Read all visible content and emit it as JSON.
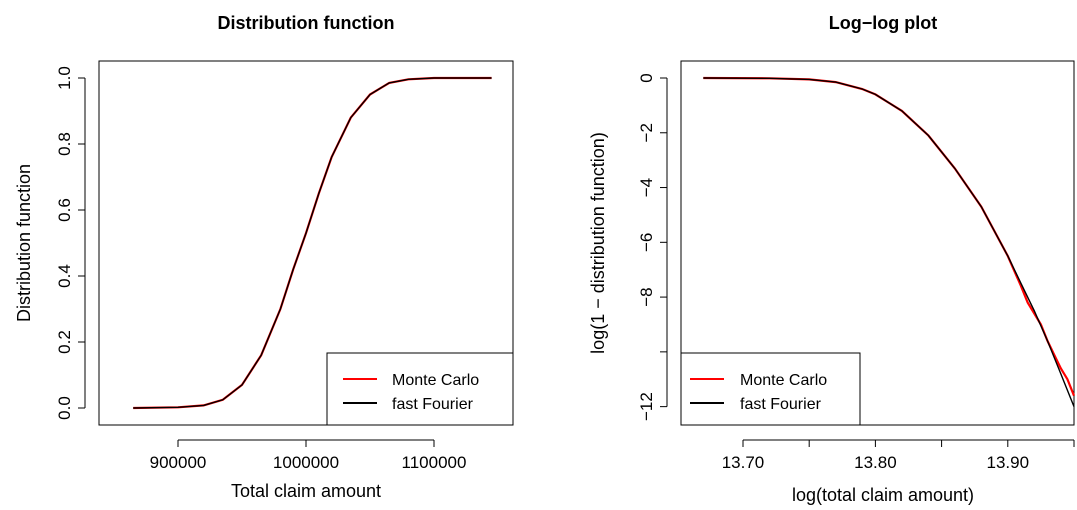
{
  "chart_data": [
    {
      "type": "line",
      "title": "Distribution function",
      "xlabel": "Total claim amount",
      "ylabel": "Distribution function",
      "xlim": [
        850000,
        1150000
      ],
      "ylim": [
        0,
        1
      ],
      "xticks": [
        900000,
        1000000,
        1100000
      ],
      "xtick_labels": [
        "900000",
        "1000000",
        "1100000"
      ],
      "yticks": [
        0.0,
        0.2,
        0.4,
        0.6,
        0.8,
        1.0
      ],
      "ytick_labels": [
        "0.0",
        "0.2",
        "0.4",
        "0.6",
        "0.8",
        "1.0"
      ],
      "legend_position": "bottom-right",
      "grid": false,
      "series": [
        {
          "name": "Monte Carlo",
          "color": "#ff0000",
          "x": [
            865000,
            900000,
            920000,
            935000,
            950000,
            965000,
            980000,
            990000,
            1000000,
            1010000,
            1020000,
            1035000,
            1050000,
            1065000,
            1080000,
            1100000,
            1120000,
            1145000
          ],
          "y": [
            0.0,
            0.002,
            0.008,
            0.025,
            0.07,
            0.16,
            0.3,
            0.42,
            0.53,
            0.65,
            0.76,
            0.88,
            0.95,
            0.985,
            0.996,
            1.0,
            1.0,
            1.0
          ]
        },
        {
          "name": "fast Fourier",
          "color": "#000000",
          "x": [
            865000,
            900000,
            920000,
            935000,
            950000,
            965000,
            980000,
            990000,
            1000000,
            1010000,
            1020000,
            1035000,
            1050000,
            1065000,
            1080000,
            1100000,
            1120000,
            1145000
          ],
          "y": [
            0.0,
            0.002,
            0.008,
            0.025,
            0.07,
            0.16,
            0.3,
            0.42,
            0.53,
            0.65,
            0.76,
            0.88,
            0.95,
            0.985,
            0.996,
            1.0,
            1.0,
            1.0
          ]
        }
      ]
    },
    {
      "type": "line",
      "title": "Log−log plot",
      "xlabel": "log(total claim amount)",
      "ylabel": "log(1 − distribution function)",
      "xlim": [
        13.663,
        13.95
      ],
      "ylim": [
        -12.05,
        0
      ],
      "xticks": [
        13.7,
        13.75,
        13.8,
        13.85,
        13.9,
        13.95
      ],
      "xtick_labels": [
        "13.70",
        "",
        "13.80",
        "",
        "13.90",
        ""
      ],
      "yticks": [
        0,
        -2,
        -4,
        -6,
        -8,
        -10,
        -12
      ],
      "ytick_labels": [
        "0",
        "−2",
        "−4",
        "−6",
        "−8",
        "",
        "−12"
      ],
      "legend_position": "bottom-left",
      "grid": false,
      "series": [
        {
          "name": "Monte Carlo",
          "color": "#ff0000",
          "x": [
            13.67,
            13.72,
            13.75,
            13.77,
            13.79,
            13.8,
            13.82,
            13.84,
            13.86,
            13.88,
            13.9,
            13.91,
            13.915,
            13.92,
            13.925,
            13.93,
            13.935,
            13.94,
            13.945,
            13.95
          ],
          "y": [
            0,
            -0.01,
            -0.05,
            -0.15,
            -0.4,
            -0.6,
            -1.2,
            -2.1,
            -3.3,
            -4.7,
            -6.5,
            -7.6,
            -8.2,
            -8.6,
            -9.0,
            -9.6,
            -10.1,
            -10.6,
            -11.0,
            -11.6
          ]
        },
        {
          "name": "fast Fourier",
          "color": "#000000",
          "x": [
            13.67,
            13.72,
            13.75,
            13.77,
            13.79,
            13.8,
            13.82,
            13.84,
            13.86,
            13.88,
            13.9,
            13.91,
            13.92,
            13.93,
            13.94,
            13.95
          ],
          "y": [
            0,
            -0.01,
            -0.05,
            -0.15,
            -0.4,
            -0.6,
            -1.2,
            -2.1,
            -3.3,
            -4.7,
            -6.5,
            -7.5,
            -8.5,
            -9.6,
            -10.8,
            -12.0
          ]
        }
      ]
    }
  ]
}
